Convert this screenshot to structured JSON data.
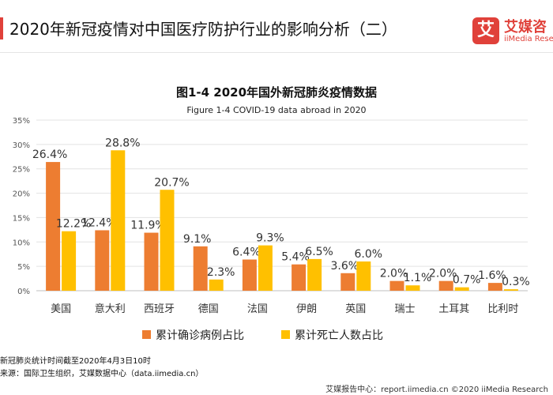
{
  "header": {
    "title": "2020年新冠疫情对中国医疗防护行业的影响分析（二）",
    "logo_cn": "艾媒咨",
    "logo_en": "iiMedia Rese",
    "logo_mark": "艾"
  },
  "notes": {
    "note1": "新冠肺炎统计时间截至2020年4月3日10时",
    "note2": "来源：国际卫生组织，艾媒数据中心（data.iimedia.cn）"
  },
  "footer": {
    "text": "艾媒报告中心：report.iimedia.cn ©2020 iiMedia Research"
  },
  "colors": {
    "accent": "#e0413a",
    "series1": "#ed7d31",
    "series2": "#ffc000"
  },
  "chart_data": {
    "type": "bar",
    "title": "图1-4 2020年国外新冠肺炎疫情数据",
    "subtitle": "Figure 1-4 COVID-19 data abroad in 2020",
    "categories": [
      "美国",
      "意大利",
      "西班牙",
      "德国",
      "法国",
      "伊朗",
      "英国",
      "瑞士",
      "土耳其",
      "比利时"
    ],
    "series": [
      {
        "name": "累计确诊病例占比",
        "values": [
          26.4,
          12.4,
          11.9,
          9.1,
          6.4,
          5.4,
          3.6,
          2.0,
          2.0,
          1.6
        ],
        "labels": [
          "26.4%",
          "12.4%",
          "11.9%",
          "9.1%",
          "6.4%",
          "5.4%",
          "3.6%",
          "2.0%",
          "2.0%",
          "1.6%"
        ]
      },
      {
        "name": "累计死亡人数占比",
        "values": [
          12.2,
          28.8,
          20.7,
          2.3,
          9.3,
          6.5,
          6.0,
          1.1,
          0.7,
          0.3
        ],
        "labels": [
          "12.2%",
          "28.8%",
          "20.7%",
          "2.3%",
          "9.3%",
          "6.5%",
          "6.0%",
          "1.1%",
          "0.7%",
          "0.3%"
        ]
      }
    ],
    "y_ticks": [
      "0%",
      "5%",
      "10%",
      "15%",
      "20%",
      "25%",
      "30%",
      "35%"
    ],
    "ylim": [
      0,
      35
    ],
    "grid": true,
    "legend": "bottom"
  }
}
